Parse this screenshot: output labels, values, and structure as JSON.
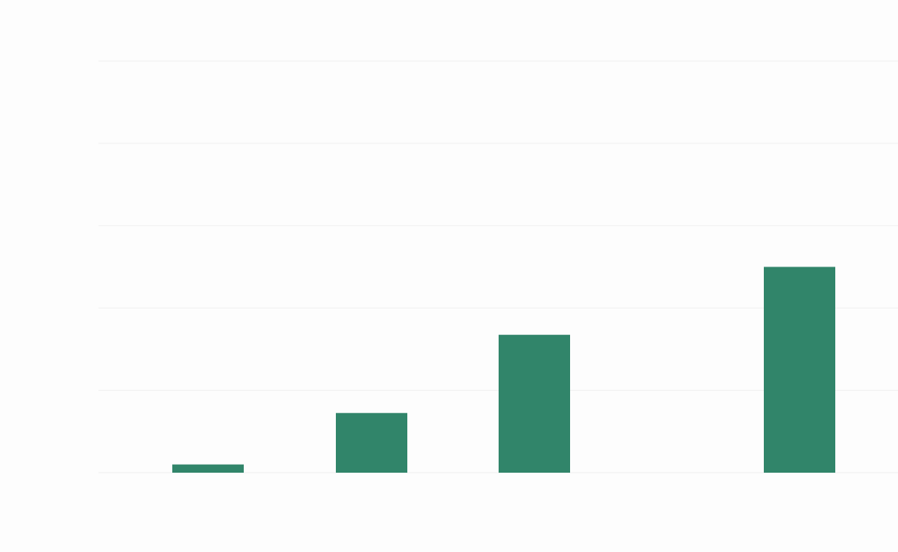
{
  "chart_data": {
    "type": "bar",
    "title": "",
    "xlabel": "",
    "ylabel": "",
    "categories": [
      "",
      "",
      "",
      ""
    ],
    "values": [
      2,
      14.5,
      33.5,
      50
    ],
    "ylim": [
      0,
      100
    ],
    "grid": true,
    "bar_color": "#31856a",
    "grid_color": "#f0f0f0",
    "background": "#fdfdfd"
  }
}
